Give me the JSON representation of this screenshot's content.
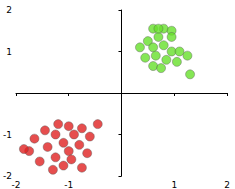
{
  "chart_data": {
    "type": "scatter",
    "xlim": [
      -2,
      2
    ],
    "ylim": [
      -2,
      2
    ],
    "xticks": [
      -2,
      -1,
      1,
      2
    ],
    "yticks": [
      -2,
      -1,
      1,
      2
    ],
    "grid": false,
    "series": [
      {
        "color": "#66e02a",
        "marker": "circle",
        "x": [
          0.6,
          0.8,
          0.95,
          0.7,
          0.5,
          0.35,
          0.6,
          0.8,
          0.95,
          1.1,
          1.25,
          0.45,
          0.65,
          0.85,
          1.05,
          0.6,
          0.75,
          1.3,
          0.95,
          0.7
        ],
        "y": [
          1.55,
          1.55,
          1.5,
          1.35,
          1.25,
          1.1,
          1.1,
          1.15,
          1.0,
          1.0,
          0.9,
          0.85,
          0.9,
          0.8,
          0.75,
          0.65,
          0.6,
          0.45,
          1.35,
          1.55
        ]
      },
      {
        "color": "#e02222",
        "marker": "circle",
        "x": [
          -1.2,
          -1.0,
          -0.75,
          -0.45,
          -1.45,
          -1.25,
          -0.9,
          -0.6,
          -1.65,
          -1.1,
          -0.8,
          -1.4,
          -1.0,
          -1.75,
          -0.65,
          -1.25,
          -0.95,
          -1.55,
          -1.1,
          -0.75,
          -1.3,
          -1.85
        ],
        "y": [
          -0.75,
          -0.8,
          -0.85,
          -0.75,
          -0.9,
          -1.0,
          -1.0,
          -1.05,
          -1.1,
          -1.2,
          -1.25,
          -1.3,
          -1.4,
          -1.4,
          -1.45,
          -1.55,
          -1.6,
          -1.65,
          -1.75,
          -1.8,
          -1.85,
          -1.35
        ]
      }
    ]
  }
}
